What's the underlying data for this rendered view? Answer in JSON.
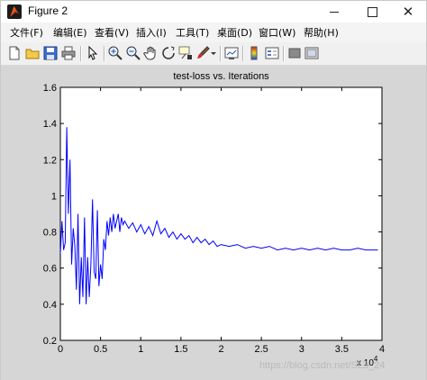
{
  "window": {
    "title": "Figure 2",
    "minimize_glyph": "—",
    "maximize_glyph": "☐",
    "close_glyph": "✕"
  },
  "menu": {
    "items": [
      {
        "label": "文件(F)"
      },
      {
        "label": "编辑(E)"
      },
      {
        "label": "查看(V)"
      },
      {
        "label": "插入(I)"
      },
      {
        "label": "工具(T)"
      },
      {
        "label": "桌面(D)"
      },
      {
        "label": "窗口(W)"
      },
      {
        "label": "帮助(H)"
      }
    ]
  },
  "toolbar": {
    "icons": [
      "new-figure-icon",
      "open-file-icon",
      "save-icon",
      "print-icon",
      "pointer-icon",
      "zoom-in-icon",
      "zoom-out-icon",
      "rotate-3d-icon",
      "data-cursor-icon",
      "brush-icon",
      "link-plot-icon",
      "colorbar-icon",
      "legend-icon",
      "hide-plot-tools-icon",
      "show-plot-tools-icon"
    ]
  },
  "chart_data": {
    "type": "line",
    "title": "test-loss vs. Iterations",
    "xlabel": "",
    "ylabel": "",
    "xlim": [
      0,
      40000
    ],
    "ylim": [
      0.2,
      1.6
    ],
    "x_ticks": [
      "0",
      "0.5",
      "1",
      "1.5",
      "2",
      "2.5",
      "3",
      "3.5",
      "4"
    ],
    "x_multiplier": "x 10",
    "x_multiplier_exp": "4",
    "y_ticks": [
      "0.2",
      "0.4",
      "0.6",
      "0.8",
      "1",
      "1.2",
      "1.4",
      "1.6"
    ],
    "grid": false,
    "line_color": "#0000ff",
    "series": [
      {
        "x": [
          0,
          200,
          400,
          600,
          800,
          1000,
          1200,
          1400,
          1600,
          1800,
          2000,
          2200,
          2400,
          2600,
          2800,
          3000,
          3200,
          3400,
          3600,
          3800,
          4000,
          4200,
          4400,
          4600,
          4800,
          5000,
          5200,
          5400,
          5600,
          5800,
          6000,
          6200,
          6400,
          6600,
          6800,
          7000,
          7200,
          7400,
          7600,
          7800,
          8000,
          8500,
          9000,
          9500,
          10000,
          10500,
          11000,
          11500,
          12000,
          12500,
          13000,
          13500,
          14000,
          14500,
          15000,
          15500,
          16000,
          16500,
          17000,
          17500,
          18000,
          18500,
          19000,
          19500,
          20000,
          21000,
          22000,
          23000,
          24000,
          25000,
          26000,
          27000,
          28000,
          29000,
          30000,
          31000,
          32000,
          33000,
          34000,
          35000,
          36000,
          37000,
          38000,
          39000,
          39500
        ],
        "values": [
          0.68,
          0.86,
          0.7,
          0.74,
          1.38,
          0.9,
          1.2,
          0.62,
          0.82,
          0.72,
          0.48,
          0.9,
          0.4,
          0.66,
          0.44,
          0.88,
          0.4,
          0.66,
          0.44,
          0.62,
          0.98,
          0.58,
          0.54,
          0.92,
          0.5,
          0.62,
          0.54,
          0.76,
          0.7,
          0.86,
          0.78,
          0.88,
          0.8,
          0.9,
          0.82,
          0.86,
          0.9,
          0.8,
          0.88,
          0.84,
          0.86,
          0.82,
          0.85,
          0.8,
          0.84,
          0.79,
          0.83,
          0.78,
          0.86,
          0.79,
          0.82,
          0.77,
          0.8,
          0.76,
          0.79,
          0.76,
          0.78,
          0.74,
          0.77,
          0.74,
          0.76,
          0.73,
          0.75,
          0.72,
          0.73,
          0.72,
          0.73,
          0.71,
          0.72,
          0.71,
          0.72,
          0.7,
          0.71,
          0.7,
          0.71,
          0.7,
          0.71,
          0.7,
          0.71,
          0.7,
          0.7,
          0.71,
          0.7,
          0.7,
          0.7
        ]
      }
    ]
  },
  "watermark": "https://blog.csdn.net/SL3_24"
}
